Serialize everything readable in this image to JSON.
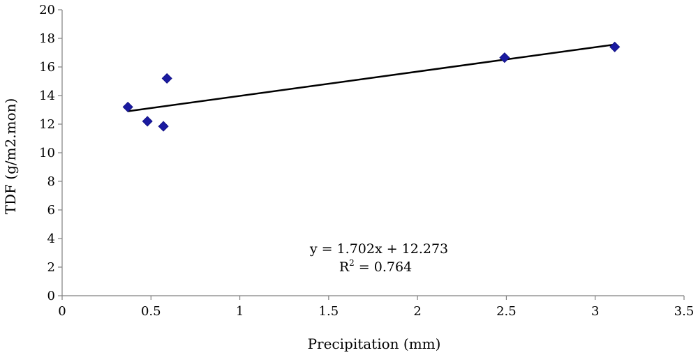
{
  "chart_data": {
    "type": "scatter",
    "title": "",
    "xlabel": "Precipitation (mm)",
    "ylabel": "TDF (g/m2.mon)",
    "xlim": [
      0,
      3.5
    ],
    "ylim": [
      0,
      20
    ],
    "x_ticks": [
      "0",
      "0.5",
      "1",
      "1.5",
      "2",
      "2.5",
      "3",
      "3.5"
    ],
    "y_ticks": [
      "0",
      "2",
      "4",
      "6",
      "8",
      "10",
      "12",
      "14",
      "16",
      "18",
      "20"
    ],
    "grid": false,
    "legend": "none",
    "marker": "diamond",
    "marker_color": "#1a1aa0",
    "points": [
      {
        "x": 0.37,
        "y": 13.2
      },
      {
        "x": 0.48,
        "y": 12.2
      },
      {
        "x": 0.57,
        "y": 11.85
      },
      {
        "x": 0.59,
        "y": 15.2
      },
      {
        "x": 2.49,
        "y": 16.65
      },
      {
        "x": 3.11,
        "y": 17.4
      }
    ],
    "trendline": {
      "slope": 1.702,
      "intercept": 12.273,
      "x_start": 0.37,
      "x_end": 3.11,
      "color": "#000000"
    },
    "annotations": {
      "equation": "y = 1.702x + 12.273",
      "r_squared_prefix": "R",
      "r_squared_sup": "2",
      "r_squared_value": " = 0.764"
    }
  }
}
